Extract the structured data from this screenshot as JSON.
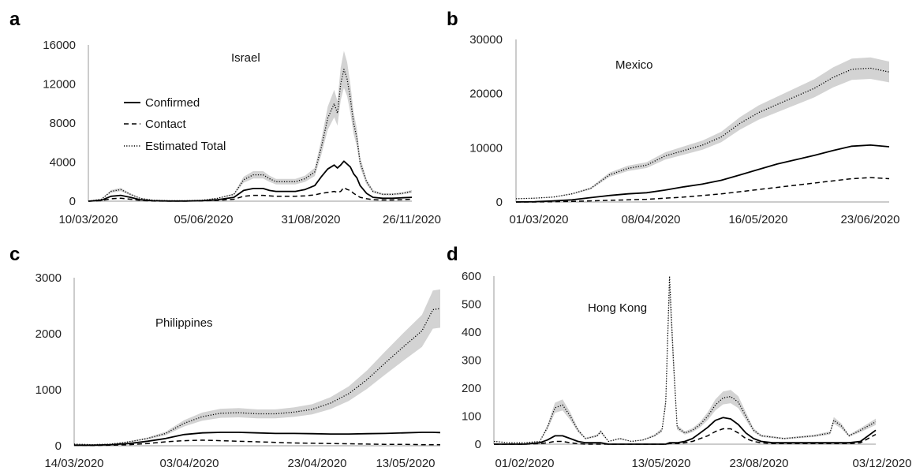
{
  "legend": {
    "confirmed": "Confirmed",
    "contact": "Contact",
    "estimated": "Estimated Total"
  },
  "colors": {
    "line": "#000000",
    "band": "#d3d3d3",
    "axis": "#9a9a9a"
  },
  "chart_data": [
    {
      "panel": "a",
      "type": "line",
      "title": "Israel",
      "x_ticks": [
        "10/03/2020",
        "05/06/2020",
        "31/08/2020",
        "26/11/2020"
      ],
      "y_ticks": [
        "0",
        "4000",
        "8000",
        "12000",
        "16000"
      ],
      "ylim": [
        0,
        16000
      ],
      "x_span": [
        0,
        1
      ],
      "x": [
        0,
        0.04,
        0.07,
        0.1,
        0.13,
        0.16,
        0.2,
        0.25,
        0.3,
        0.35,
        0.4,
        0.45,
        0.48,
        0.51,
        0.54,
        0.56,
        0.58,
        0.61,
        0.64,
        0.67,
        0.7,
        0.72,
        0.74,
        0.76,
        0.77,
        0.78,
        0.79,
        0.8,
        0.81,
        0.82,
        0.83,
        0.84,
        0.86,
        0.88,
        0.91,
        0.94,
        0.97,
        1.0
      ],
      "series": [
        {
          "name": "Estimated Total",
          "style": "dotted",
          "band": 0.14,
          "values": [
            0,
            200,
            1000,
            1200,
            700,
            300,
            100,
            50,
            50,
            100,
            300,
            700,
            2200,
            2700,
            2700,
            2300,
            2000,
            2000,
            2000,
            2300,
            3000,
            5500,
            8500,
            10000,
            9000,
            12000,
            13500,
            12500,
            10500,
            8000,
            6500,
            4000,
            2000,
            1000,
            700,
            700,
            800,
            1000
          ]
        },
        {
          "name": "Confirmed",
          "style": "solid",
          "band": 0,
          "values": [
            0,
            100,
            500,
            600,
            400,
            150,
            50,
            20,
            20,
            50,
            150,
            400,
            1100,
            1300,
            1300,
            1100,
            1000,
            1000,
            1000,
            1200,
            1600,
            2500,
            3300,
            3700,
            3400,
            3700,
            4100,
            3800,
            3500,
            2800,
            2400,
            1600,
            800,
            400,
            300,
            300,
            350,
            400
          ]
        },
        {
          "name": "Contact",
          "style": "dashed",
          "band": 0,
          "values": [
            0,
            50,
            250,
            300,
            200,
            80,
            20,
            10,
            10,
            30,
            80,
            200,
            500,
            600,
            600,
            550,
            500,
            500,
            500,
            550,
            650,
            800,
            900,
            1000,
            900,
            1000,
            1400,
            1200,
            1100,
            800,
            600,
            400,
            250,
            150,
            120,
            120,
            150,
            200
          ]
        }
      ]
    },
    {
      "panel": "b",
      "type": "line",
      "title": "Mexico",
      "x_ticks": [
        "01/03/2020",
        "08/04/2020",
        "16/05/2020",
        "23/06/2020"
      ],
      "y_ticks": [
        "0",
        "10000",
        "20000",
        "30000"
      ],
      "ylim": [
        0,
        30000
      ],
      "x_span": [
        0,
        1
      ],
      "x": [
        0,
        0.05,
        0.1,
        0.15,
        0.2,
        0.25,
        0.3,
        0.35,
        0.4,
        0.45,
        0.5,
        0.55,
        0.6,
        0.65,
        0.7,
        0.75,
        0.8,
        0.85,
        0.9,
        0.95,
        1.0
      ],
      "series": [
        {
          "name": "Estimated Total",
          "style": "dotted",
          "band": 0.08,
          "values": [
            600,
            700,
            900,
            1500,
            2500,
            5000,
            6200,
            6800,
            8500,
            9500,
            10500,
            12000,
            14500,
            16500,
            18000,
            19500,
            21000,
            23000,
            24500,
            24700,
            24000
          ]
        },
        {
          "name": "Confirmed",
          "style": "solid",
          "band": 0,
          "values": [
            0,
            50,
            200,
            400,
            800,
            1200,
            1500,
            1700,
            2200,
            2800,
            3300,
            4000,
            5000,
            6000,
            7000,
            7800,
            8600,
            9500,
            10300,
            10500,
            10200
          ]
        },
        {
          "name": "Contact",
          "style": "dashed",
          "band": 0,
          "values": [
            0,
            0,
            50,
            100,
            200,
            300,
            400,
            500,
            700,
            900,
            1200,
            1500,
            1900,
            2300,
            2700,
            3100,
            3500,
            3900,
            4300,
            4500,
            4300
          ]
        }
      ]
    },
    {
      "panel": "c",
      "type": "line",
      "title": "Philippines",
      "x_ticks": [
        "14/03/2020",
        "03/04/2020",
        "23/04/2020",
        "13/05/2020"
      ],
      "y_ticks": [
        "0",
        "1000",
        "2000",
        "3000"
      ],
      "ylim": [
        0,
        3000
      ],
      "x_span": [
        0,
        1
      ],
      "x": [
        0,
        0.05,
        0.1,
        0.15,
        0.2,
        0.25,
        0.3,
        0.35,
        0.4,
        0.45,
        0.5,
        0.55,
        0.6,
        0.65,
        0.7,
        0.75,
        0.8,
        0.85,
        0.9,
        0.95,
        0.98,
        1.0
      ],
      "series": [
        {
          "name": "Estimated Total",
          "style": "dotted",
          "band": 0.14,
          "values": [
            30,
            20,
            30,
            70,
            130,
            220,
            400,
            520,
            580,
            590,
            570,
            570,
            600,
            650,
            760,
            930,
            1180,
            1480,
            1770,
            2050,
            2430,
            2450
          ]
        },
        {
          "name": "Confirmed",
          "style": "solid",
          "band": 0,
          "values": [
            10,
            10,
            20,
            40,
            80,
            130,
            200,
            230,
            240,
            240,
            230,
            220,
            220,
            215,
            210,
            210,
            215,
            220,
            230,
            240,
            240,
            235
          ]
        },
        {
          "name": "Contact",
          "style": "dashed",
          "band": 0,
          "values": [
            10,
            5,
            10,
            20,
            40,
            70,
            90,
            100,
            90,
            80,
            70,
            60,
            50,
            45,
            40,
            35,
            30,
            25,
            25,
            20,
            20,
            20
          ]
        }
      ]
    },
    {
      "panel": "d",
      "type": "line",
      "title": "Hong Kong",
      "x_ticks": [
        "01/02/2020",
        "13/05/2020",
        "23/08/2020",
        "03/12/2020"
      ],
      "y_ticks": [
        "0",
        "100",
        "200",
        "300",
        "400",
        "500",
        "600"
      ],
      "ylim": [
        0,
        600
      ],
      "x_span": [
        0,
        1
      ],
      "x": [
        0,
        0.04,
        0.08,
        0.12,
        0.14,
        0.16,
        0.18,
        0.2,
        0.22,
        0.24,
        0.27,
        0.28,
        0.3,
        0.33,
        0.36,
        0.39,
        0.42,
        0.44,
        0.45,
        0.46,
        0.47,
        0.48,
        0.5,
        0.52,
        0.54,
        0.56,
        0.58,
        0.6,
        0.62,
        0.64,
        0.66,
        0.68,
        0.7,
        0.73,
        0.76,
        0.8,
        0.84,
        0.88,
        0.89,
        0.91,
        0.93,
        0.96,
        1.0
      ],
      "series": [
        {
          "name": "Estimated Total",
          "style": "dotted",
          "band": 0.14,
          "values": [
            10,
            5,
            5,
            10,
            60,
            130,
            140,
            100,
            50,
            20,
            30,
            45,
            10,
            20,
            10,
            15,
            30,
            50,
            150,
            600,
            300,
            60,
            40,
            50,
            70,
            100,
            140,
            165,
            170,
            150,
            100,
            50,
            30,
            25,
            20,
            25,
            30,
            40,
            85,
            65,
            30,
            50,
            80
          ]
        },
        {
          "name": "Confirmed",
          "style": "solid",
          "band": 0,
          "values": [
            0,
            0,
            0,
            5,
            15,
            30,
            30,
            20,
            10,
            5,
            5,
            5,
            0,
            0,
            0,
            0,
            0,
            0,
            0,
            5,
            5,
            5,
            10,
            20,
            40,
            60,
            85,
            95,
            90,
            70,
            40,
            20,
            10,
            5,
            5,
            5,
            5,
            5,
            5,
            5,
            5,
            10,
            50
          ]
        },
        {
          "name": "Contact",
          "style": "dashed",
          "band": 0,
          "values": [
            0,
            0,
            0,
            2,
            5,
            10,
            10,
            5,
            2,
            0,
            0,
            0,
            0,
            0,
            0,
            0,
            0,
            0,
            0,
            2,
            2,
            2,
            5,
            10,
            20,
            30,
            45,
            55,
            55,
            40,
            20,
            10,
            5,
            2,
            2,
            2,
            2,
            2,
            2,
            2,
            2,
            5,
            35
          ]
        }
      ]
    }
  ]
}
